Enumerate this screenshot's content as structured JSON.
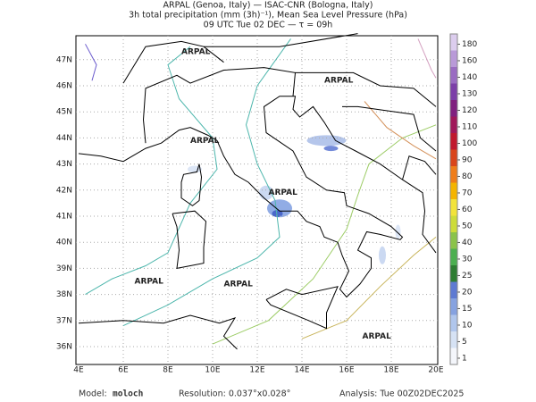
{
  "header": {
    "lines": [
      "ARPAL (Genoa, Italy)  —  ISAC-CNR (Bologna, Italy)",
      "3h total precipitation (mm (3h)⁻¹), Mean Sea Level Pressure (hPa)",
      "09 UTC Tue 02 DEC  —  τ = 09h"
    ]
  },
  "map": {
    "lon_labels": [
      "4E",
      "6E",
      "8E",
      "10E",
      "12E",
      "14E",
      "16E",
      "18E",
      "20E"
    ],
    "lat_labels": [
      "36N",
      "37N",
      "38N",
      "39N",
      "40N",
      "41N",
      "42N",
      "43N",
      "44N",
      "45N",
      "46N",
      "47N"
    ],
    "watermark": "ARPAL"
  },
  "colorbar": {
    "levels": [
      {
        "label": "1",
        "color": "#f4f6fb"
      },
      {
        "label": "5",
        "color": "#d6e2f4"
      },
      {
        "label": "10",
        "color": "#b0c6ec"
      },
      {
        "label": "15",
        "color": "#86a2e0"
      },
      {
        "label": "20",
        "color": "#5e7ad2"
      },
      {
        "label": "25",
        "color": "#2e7d32"
      },
      {
        "label": "30",
        "color": "#4caf50"
      },
      {
        "label": "40",
        "color": "#8bc34a"
      },
      {
        "label": "50",
        "color": "#cddc39"
      },
      {
        "label": "60",
        "color": "#f2e33a"
      },
      {
        "label": "70",
        "color": "#f4b400"
      },
      {
        "label": "80",
        "color": "#ef7d1a"
      },
      {
        "label": "90",
        "color": "#d9451b"
      },
      {
        "label": "100",
        "color": "#c0182e"
      },
      {
        "label": "110",
        "color": "#a0185a"
      },
      {
        "label": "120",
        "color": "#80207f"
      },
      {
        "label": "130",
        "color": "#7c3fa8"
      },
      {
        "label": "140",
        "color": "#9a6cc2"
      },
      {
        "label": "160",
        "color": "#b99ad8"
      },
      {
        "label": "180",
        "color": "#dccdee"
      }
    ]
  },
  "footer": {
    "model_label": "Model:",
    "model": "moloch",
    "resolution": "Resolution: 0.037°x0.028°",
    "analysis": "Analysis: Tue 00Z02DEC2025"
  }
}
